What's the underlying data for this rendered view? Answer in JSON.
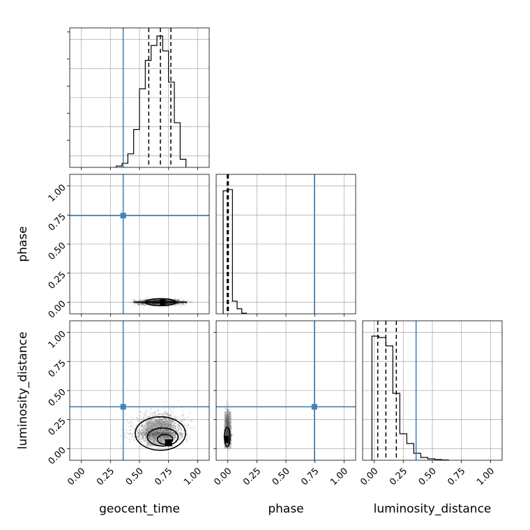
{
  "chart_data": {
    "type": "corner",
    "parameters": [
      "geocent_time",
      "phase",
      "luminosity_distance"
    ],
    "axis_range": [
      -0.1,
      1.1
    ],
    "ticks": [
      0.0,
      0.25,
      0.5,
      0.75,
      1.0
    ],
    "tick_labels": [
      "0.00",
      "0.25",
      "0.50",
      "0.75",
      "1.00"
    ],
    "truth_values": {
      "geocent_time": 0.36,
      "phase": 0.745,
      "luminosity_distance": 0.36
    },
    "colors": {
      "truth": "#4682b4",
      "hist": "#000000",
      "grid": "#b0b0b0"
    },
    "histograms": {
      "geocent_time": {
        "edges": [
          0.3,
          0.35,
          0.4,
          0.45,
          0.5,
          0.55,
          0.6,
          0.65,
          0.7,
          0.75,
          0.8,
          0.85,
          0.9
        ],
        "values": [
          0.01,
          0.03,
          0.1,
          0.28,
          0.58,
          0.79,
          0.9,
          0.97,
          0.86,
          0.63,
          0.33,
          0.06
        ],
        "quantiles": [
          0.58,
          0.68,
          0.77
        ],
        "ymax": 1.03
      },
      "phase": {
        "edges": [
          -0.04,
          0.0,
          0.04,
          0.08,
          0.12,
          0.16
        ],
        "values": [
          0.97,
          0.98,
          0.1,
          0.04,
          0.005
        ],
        "quantiles": [
          -0.005,
          0.0,
          0.005
        ],
        "ymax": 1.1
      },
      "luminosity_distance": {
        "edges": [
          -0.02,
          0.04,
          0.1,
          0.16,
          0.22,
          0.28,
          0.34,
          0.4,
          0.46,
          0.52,
          0.58,
          0.64
        ],
        "values": [
          0.89,
          0.88,
          0.82,
          0.48,
          0.19,
          0.12,
          0.05,
          0.02,
          0.01,
          0.005,
          0.002
        ],
        "quantiles": [
          0.03,
          0.1,
          0.19
        ],
        "ymax": 1.0
      }
    },
    "scatter": {
      "geocent_time_phase": {
        "x_center": 0.68,
        "x_sigma": 0.09,
        "y_center": 0.0,
        "y_sigma": 0.012,
        "count": 1500
      },
      "geocent_time_luminosity_distance": {
        "x_center": 0.67,
        "x_sigma": 0.1,
        "y_center": 0.14,
        "y_sigma": 0.08,
        "count": 1800
      },
      "phase_luminosity_distance": {
        "x_center": 0.0,
        "x_sigma": 0.012,
        "y_center": 0.12,
        "y_sigma": 0.09,
        "count": 1200
      }
    }
  }
}
